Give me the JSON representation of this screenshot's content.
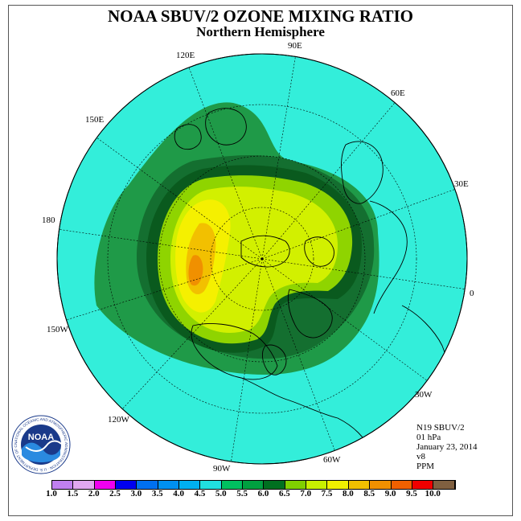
{
  "title": "NOAA SBUV/2 OZONE MIXING RATIO",
  "subtitle": "Northern Hemisphere",
  "longitude_labels": {
    "e90": "90E",
    "e60": "60E",
    "e30": "30E",
    "zero": "0",
    "w30": "30W",
    "w60": "60W",
    "w90": "90W",
    "w120": "120W",
    "w150": "150W",
    "d180": "180",
    "e150": "150E",
    "e120": "120E"
  },
  "info": {
    "instrument": "N19 SBUV/2",
    "level": "01 hPa",
    "date": "January 23, 2014",
    "version": "v8",
    "units": "PPM"
  },
  "logo": {
    "text": "NOAA",
    "ring_text": "NATIONAL OCEANIC AND ATMOSPHERIC ADMINISTRATION · U.S. DEPARTMENT OF COMMERCE"
  },
  "colorbar": {
    "labels": [
      "1.0",
      "1.5",
      "2.0",
      "2.5",
      "3.0",
      "3.5",
      "4.0",
      "4.5",
      "5.0",
      "5.5",
      "6.0",
      "6.5",
      "7.0",
      "7.5",
      "8.0",
      "8.5",
      "9.0",
      "9.5",
      "10.0"
    ],
    "colors": [
      "#c080f0",
      "#e0a8f0",
      "#f000f0",
      "#0000f0",
      "#0070f0",
      "#0090f0",
      "#00b0f0",
      "#20e0e0",
      "#00c060",
      "#00a040",
      "#007020",
      "#80d000",
      "#c8f000",
      "#f0f000",
      "#f0c000",
      "#f09000",
      "#f06000",
      "#f00000",
      "#806040"
    ]
  },
  "field": {
    "background_level": "4.5",
    "background_color": "#33eeda"
  }
}
